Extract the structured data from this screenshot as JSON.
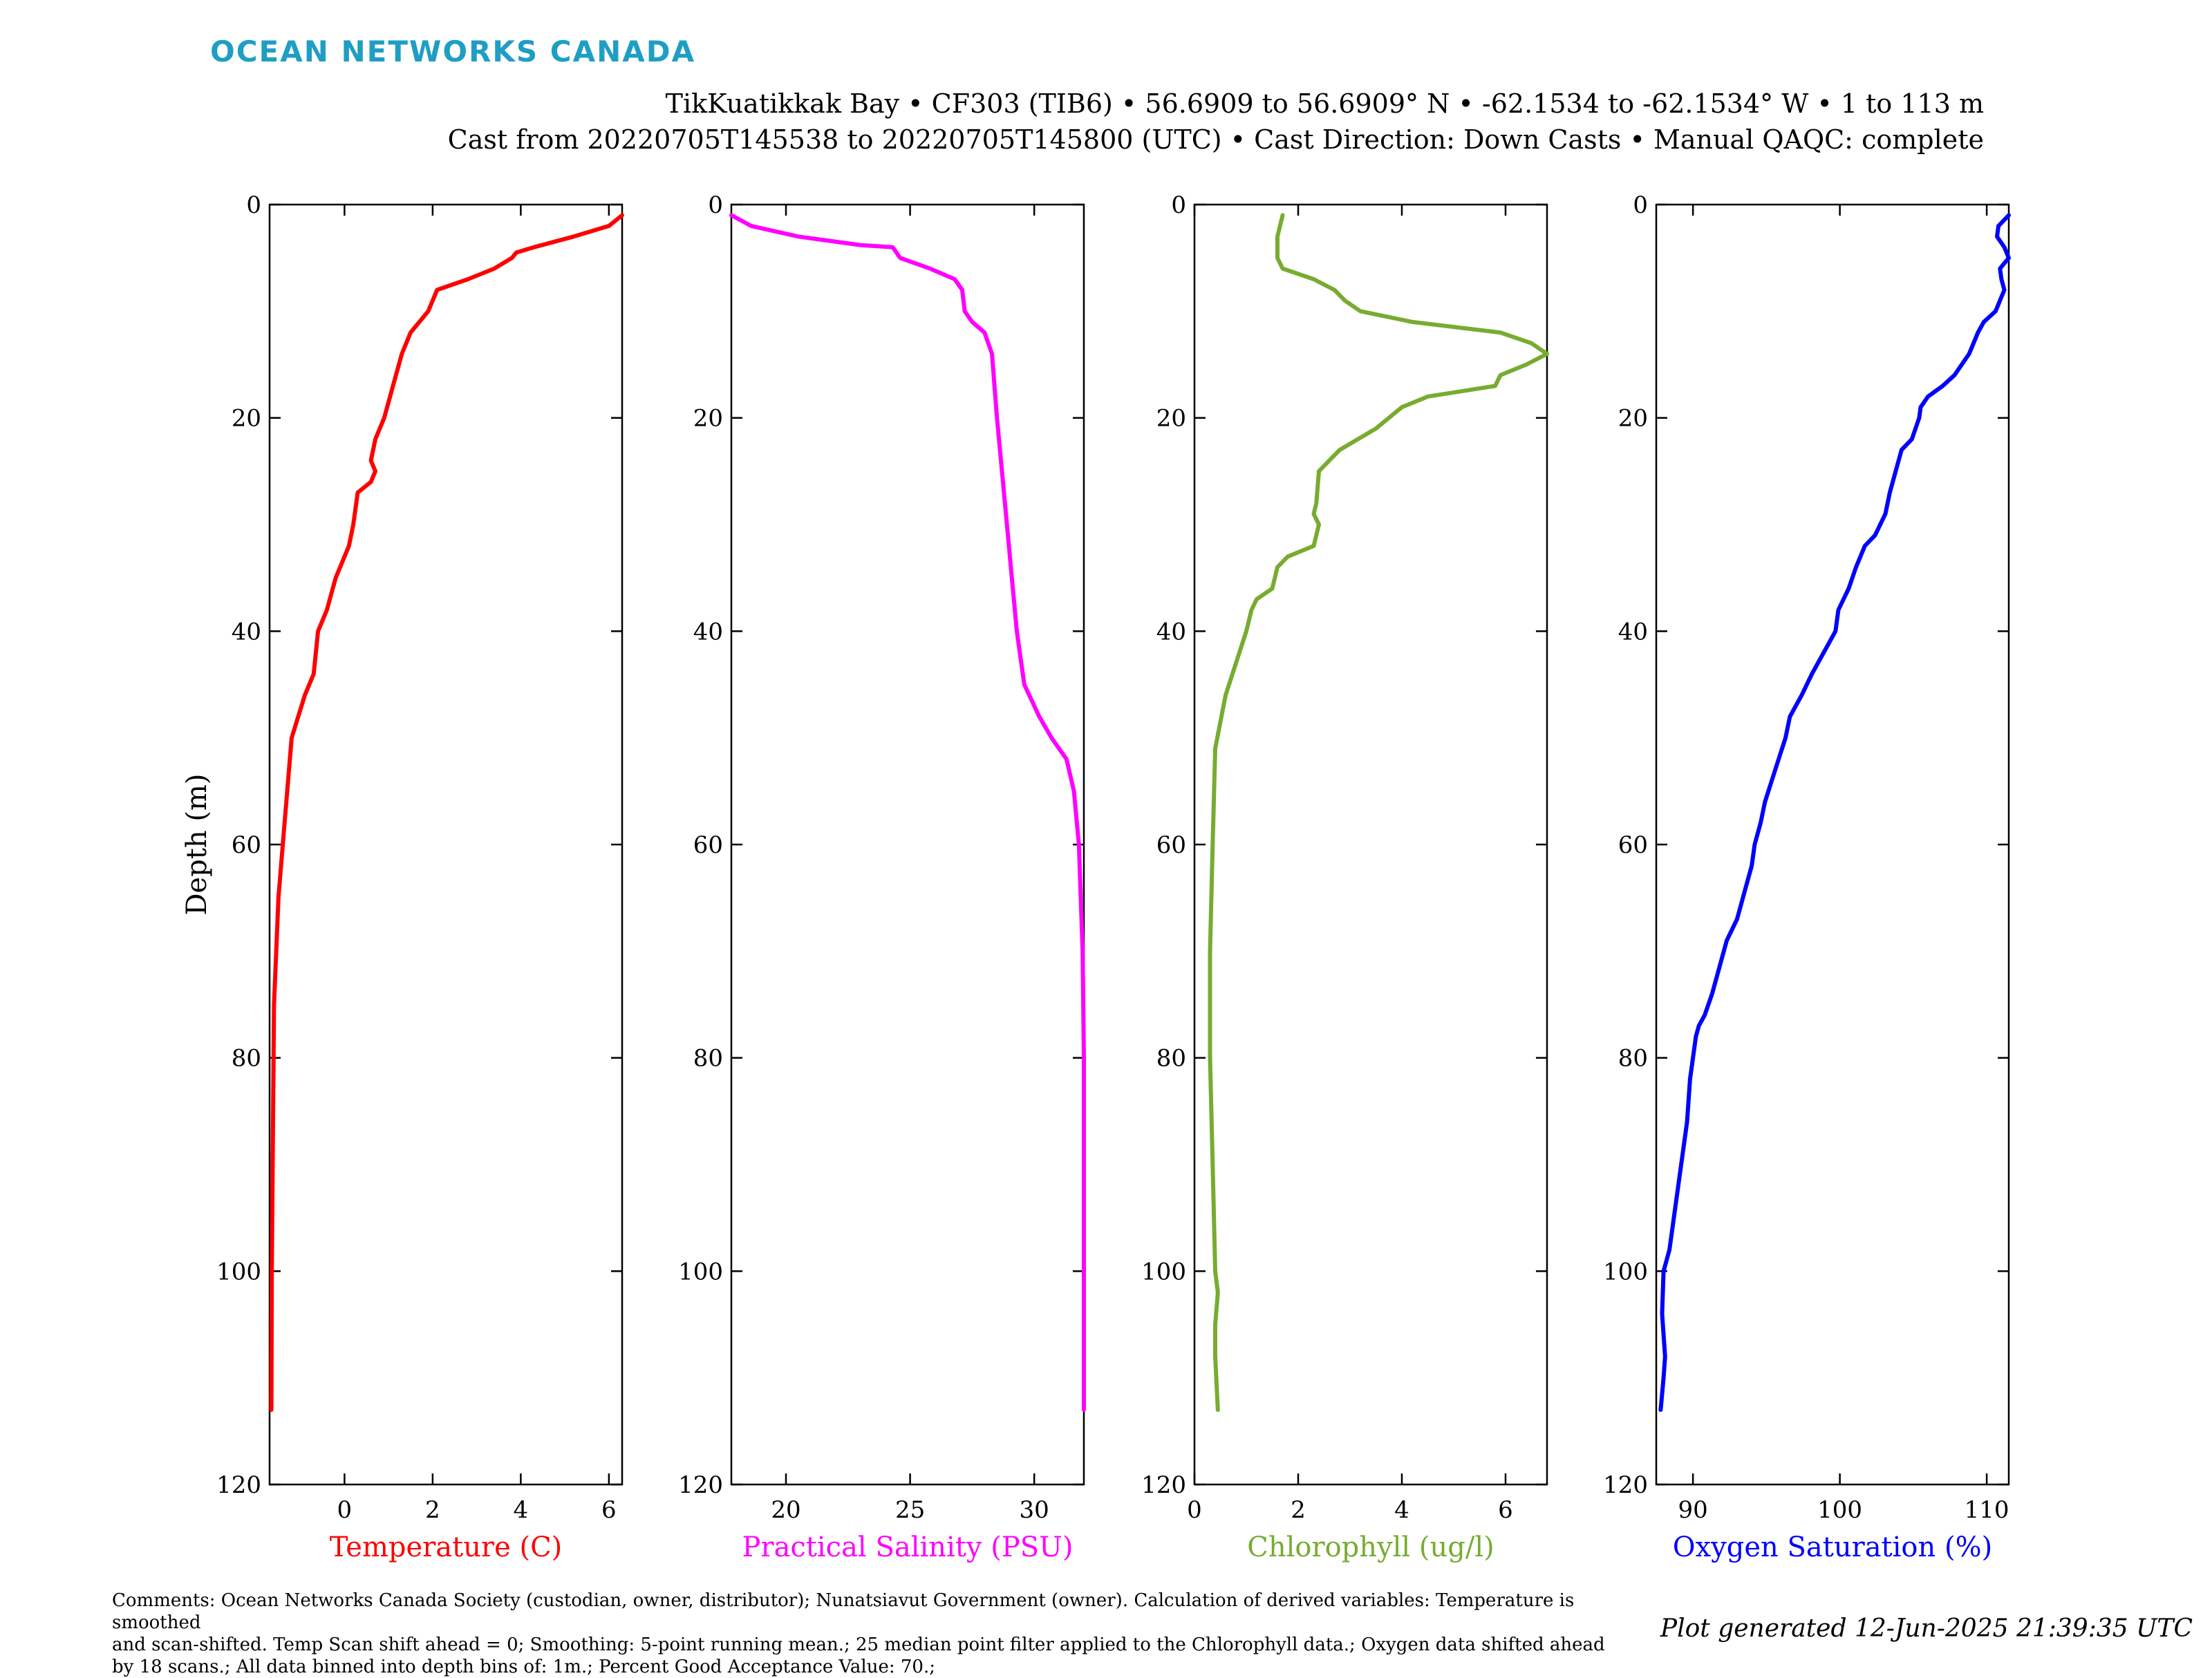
{
  "header": {
    "logo": "OCEAN NETWORKS CANADA",
    "line1": "TikKuatikkak Bay • CF303 (TIB6) • 56.6909 to 56.6909° N • -62.1534 to -62.1534° W • 1 to 113 m",
    "line2": "Cast from 20220705T145538 to 20220705T145800 (UTC) • Cast Direction: Down Casts • Manual QAQC: complete"
  },
  "footer": {
    "comments_line1": "Comments: Ocean Networks Canada Society (custodian, owner, distributor); Nunatsiavut Government (owner). Calculation of derived variables: Temperature is smoothed",
    "comments_line2": "and scan-shifted. Temp Scan shift ahead = 0; Smoothing: 5-point running mean.; 25 median point filter applied to the Chlorophyll data.; Oxygen data shifted ahead",
    "comments_line3": "by 18 scans.; All data binned into depth bins of: 1m.; Percent Good Acceptance Value: 70.;",
    "generated": "Plot generated 12-Jun-2025 21:39:35 UTC"
  },
  "chart_data": [
    {
      "type": "line",
      "xlabel": "Temperature (C)",
      "ylabel": "Depth (m)",
      "color": "#ff0000",
      "xlim": [
        -1.7,
        6.3
      ],
      "xticks": [
        0,
        2,
        4,
        6
      ],
      "ylim": [
        0,
        120
      ],
      "yticks": [
        0,
        20,
        40,
        60,
        80,
        100,
        120
      ],
      "y_reversed": true,
      "x": [
        6.3,
        6.0,
        5.2,
        4.3,
        3.9,
        3.8,
        3.4,
        2.8,
        2.1,
        2.0,
        1.9,
        1.5,
        1.3,
        1.1,
        0.9,
        0.8,
        0.7,
        0.6,
        0.7,
        0.6,
        0.3,
        0.2,
        0.1,
        -0.2,
        -0.4,
        -0.6,
        -0.7,
        -0.9,
        -1.2,
        -1.3,
        -1.4,
        -1.5,
        -1.55,
        -1.6,
        -1.62,
        -1.65,
        -1.66
      ],
      "y": [
        1,
        2,
        3,
        4,
        4.5,
        5,
        6,
        7,
        8,
        9,
        10,
        12,
        14,
        17,
        20,
        21,
        22,
        24,
        25,
        26,
        27,
        30,
        32,
        35,
        38,
        40,
        44,
        46,
        50,
        55,
        60,
        65,
        70,
        75,
        85,
        100,
        113
      ]
    },
    {
      "type": "line",
      "xlabel": "Practical Salinity (PSU)",
      "color": "#ff00ff",
      "xlim": [
        17.8,
        32.0
      ],
      "xticks": [
        20,
        25,
        30
      ],
      "ylim": [
        0,
        120
      ],
      "yticks": [
        0,
        20,
        40,
        60,
        80,
        100,
        120
      ],
      "y_reversed": true,
      "x": [
        17.8,
        18.6,
        20.5,
        23.0,
        24.3,
        24.6,
        25.8,
        26.8,
        27.1,
        27.2,
        27.5,
        28.0,
        28.3,
        28.5,
        28.7,
        28.9,
        29.1,
        29.3,
        29.6,
        30.2,
        30.7,
        31.0,
        31.3,
        31.6,
        31.8,
        31.95,
        32.0,
        32.0,
        32.0
      ],
      "y": [
        1,
        2,
        3,
        3.8,
        4,
        5,
        6,
        7,
        8,
        10,
        11,
        12,
        14,
        20,
        25,
        30,
        35,
        40,
        45,
        48,
        50,
        51,
        52,
        55,
        60,
        70,
        80,
        100,
        113
      ]
    },
    {
      "type": "line",
      "xlabel": "Chlorophyll (ug/l)",
      "color": "#77ac30",
      "xlim": [
        0,
        6.8
      ],
      "xticks": [
        0,
        2,
        4,
        6
      ],
      "ylim": [
        0,
        120
      ],
      "yticks": [
        0,
        20,
        40,
        60,
        80,
        100,
        120
      ],
      "y_reversed": true,
      "x": [
        1.7,
        1.6,
        1.6,
        1.7,
        2.3,
        2.7,
        2.9,
        3.2,
        4.2,
        5.9,
        6.5,
        6.8,
        6.4,
        5.9,
        5.8,
        4.5,
        4.0,
        3.5,
        2.8,
        2.6,
        2.4,
        2.35,
        2.3,
        2.4,
        2.3,
        1.8,
        1.6,
        1.5,
        1.2,
        1.1,
        1.0,
        0.8,
        0.6,
        0.4,
        0.35,
        0.3,
        0.3,
        0.35,
        0.4,
        0.45,
        0.4,
        0.4,
        0.45
      ],
      "y": [
        1,
        3,
        5,
        6,
        7,
        8,
        9,
        10,
        11,
        12,
        13,
        14,
        15,
        16,
        17,
        18,
        19,
        21,
        23,
        24,
        25,
        28,
        29,
        30,
        32,
        33,
        34,
        36,
        37,
        38,
        40,
        43,
        46,
        51,
        60,
        70,
        80,
        90,
        100,
        102,
        105,
        108,
        113
      ]
    },
    {
      "type": "line",
      "xlabel": "Oxygen Saturation (%)",
      "color": "#0000ff",
      "xlim": [
        87.5,
        111.5
      ],
      "xticks": [
        90,
        100,
        110
      ],
      "ylim": [
        0,
        120
      ],
      "yticks": [
        0,
        20,
        40,
        60,
        80,
        100,
        120
      ],
      "y_reversed": true,
      "x": [
        111.5,
        110.8,
        110.7,
        111.2,
        111.5,
        110.9,
        111.0,
        111.2,
        110.6,
        109.8,
        109.4,
        108.8,
        108.3,
        107.8,
        107.0,
        106.0,
        105.5,
        105.4,
        104.9,
        104.2,
        103.8,
        103.4,
        103.1,
        102.4,
        101.7,
        101.1,
        100.6,
        99.9,
        99.7,
        98.9,
        98.1,
        97.4,
        96.6,
        96.3,
        95.6,
        94.9,
        94.6,
        94.2,
        94.0,
        93.6,
        93.0,
        92.3,
        91.7,
        91.3,
        90.8,
        90.4,
        90.2,
        89.8,
        89.6,
        89.2,
        88.8,
        88.4,
        88.0,
        87.9,
        88.1,
        88.0,
        87.8
      ],
      "y": [
        1,
        2,
        3,
        4,
        5,
        6,
        7,
        8,
        10,
        11,
        12,
        14,
        15,
        16,
        17,
        18,
        19,
        20,
        22,
        23,
        25,
        27,
        29,
        31,
        32,
        34,
        36,
        38,
        40,
        42,
        44,
        46,
        48,
        50,
        53,
        56,
        58,
        60,
        62,
        64,
        67,
        69,
        72,
        74,
        76,
        77,
        78,
        82,
        86,
        90,
        94,
        98,
        100,
        104,
        108,
        110,
        113
      ]
    }
  ]
}
